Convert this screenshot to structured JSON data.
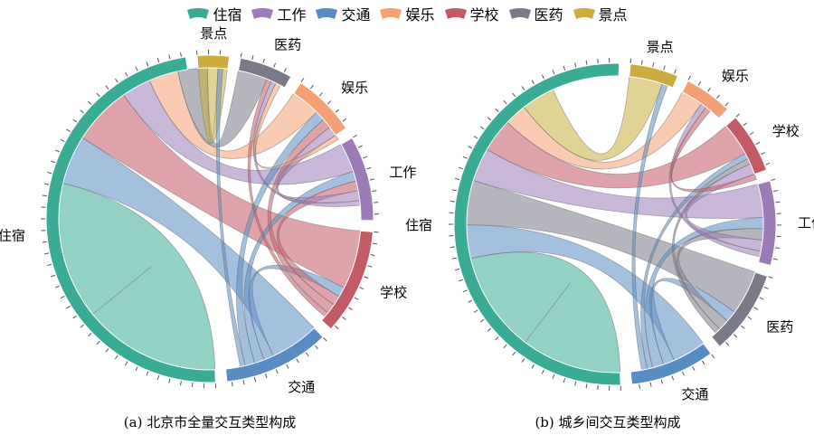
{
  "legend": [
    {
      "name": "住宿",
      "color": "#3aab95",
      "icon": "ribbon-swatch"
    },
    {
      "name": "工作",
      "color": "#9b7bb8",
      "icon": "ribbon-swatch"
    },
    {
      "name": "交通",
      "color": "#5a8cc4",
      "icon": "ribbon-swatch"
    },
    {
      "name": "娱乐",
      "color": "#f4a074",
      "icon": "ribbon-swatch"
    },
    {
      "name": "学校",
      "color": "#c45a66",
      "icon": "ribbon-swatch"
    },
    {
      "name": "医药",
      "color": "#7a7a88",
      "icon": "ribbon-swatch"
    },
    {
      "name": "景点",
      "color": "#c9ad3f",
      "icon": "ribbon-swatch"
    }
  ],
  "chart_data": [
    {
      "type": "chord",
      "caption": "(a) 北京市全量交互类型构成",
      "groups": [
        {
          "name": "住宿",
          "value": 46,
          "color": "#3aab95"
        },
        {
          "name": "景点",
          "value": 3,
          "color": "#c9ad3f"
        },
        {
          "name": "医药",
          "value": 5,
          "color": "#7a7a88"
        },
        {
          "name": "娱乐",
          "value": 6,
          "color": "#f4a074"
        },
        {
          "name": "工作",
          "value": 8,
          "color": "#9b7bb8"
        },
        {
          "name": "学校",
          "value": 10,
          "color": "#c45a66"
        },
        {
          "name": "交通",
          "value": 10,
          "color": "#5a8cc4"
        }
      ],
      "links": [
        {
          "source": "住宿",
          "target": "住宿",
          "value": 14
        },
        {
          "source": "住宿",
          "target": "交通",
          "value": 5
        },
        {
          "source": "住宿",
          "target": "学校",
          "value": 6
        },
        {
          "source": "住宿",
          "target": "工作",
          "value": 3
        },
        {
          "source": "住宿",
          "target": "娱乐",
          "value": 3
        },
        {
          "source": "住宿",
          "target": "医药",
          "value": 3
        },
        {
          "source": "住宿",
          "target": "景点",
          "value": 2
        },
        {
          "source": "交通",
          "target": "学校",
          "value": 1
        },
        {
          "source": "交通",
          "target": "工作",
          "value": 1
        },
        {
          "source": "交通",
          "target": "娱乐",
          "value": 1
        },
        {
          "source": "交通",
          "target": "景点",
          "value": 0.5
        },
        {
          "source": "学校",
          "target": "工作",
          "value": 1
        },
        {
          "source": "学校",
          "target": "娱乐",
          "value": 1
        },
        {
          "source": "学校",
          "target": "医药",
          "value": 0.5
        },
        {
          "source": "工作",
          "target": "娱乐",
          "value": 1
        },
        {
          "source": "工作",
          "target": "医药",
          "value": 0.5
        },
        {
          "source": "娱乐",
          "target": "医药",
          "value": 0.5
        }
      ]
    },
    {
      "type": "chord",
      "caption": "(b) 城乡间交互类型构成",
      "groups": [
        {
          "name": "住宿",
          "value": 42,
          "color": "#3aab95"
        },
        {
          "name": "景点",
          "value": 4,
          "color": "#c9ad3f"
        },
        {
          "name": "娱乐",
          "value": 4,
          "color": "#f4a074"
        },
        {
          "name": "学校",
          "value": 5,
          "color": "#c45a66"
        },
        {
          "name": "工作",
          "value": 7,
          "color": "#9b7bb8"
        },
        {
          "name": "医药",
          "value": 7,
          "color": "#7a7a88"
        },
        {
          "name": "交通",
          "value": 7,
          "color": "#5a8cc4"
        }
      ],
      "links": [
        {
          "source": "住宿",
          "target": "住宿",
          "value": 9
        },
        {
          "source": "住宿",
          "target": "交通",
          "value": 3
        },
        {
          "source": "住宿",
          "target": "医药",
          "value": 4
        },
        {
          "source": "住宿",
          "target": "工作",
          "value": 3
        },
        {
          "source": "住宿",
          "target": "学校",
          "value": 3
        },
        {
          "source": "住宿",
          "target": "娱乐",
          "value": 2
        },
        {
          "source": "住宿",
          "target": "景点",
          "value": 3
        },
        {
          "source": "交通",
          "target": "医药",
          "value": 1
        },
        {
          "source": "交通",
          "target": "工作",
          "value": 1
        },
        {
          "source": "交通",
          "target": "学校",
          "value": 0.5
        },
        {
          "source": "交通",
          "target": "景点",
          "value": 0.5
        },
        {
          "source": "医药",
          "target": "工作",
          "value": 1
        },
        {
          "source": "医药",
          "target": "学校",
          "value": 0.5
        },
        {
          "source": "工作",
          "target": "学校",
          "value": 1
        },
        {
          "source": "工作",
          "target": "娱乐",
          "value": 0.5
        },
        {
          "source": "学校",
          "target": "娱乐",
          "value": 0.5
        }
      ]
    }
  ]
}
